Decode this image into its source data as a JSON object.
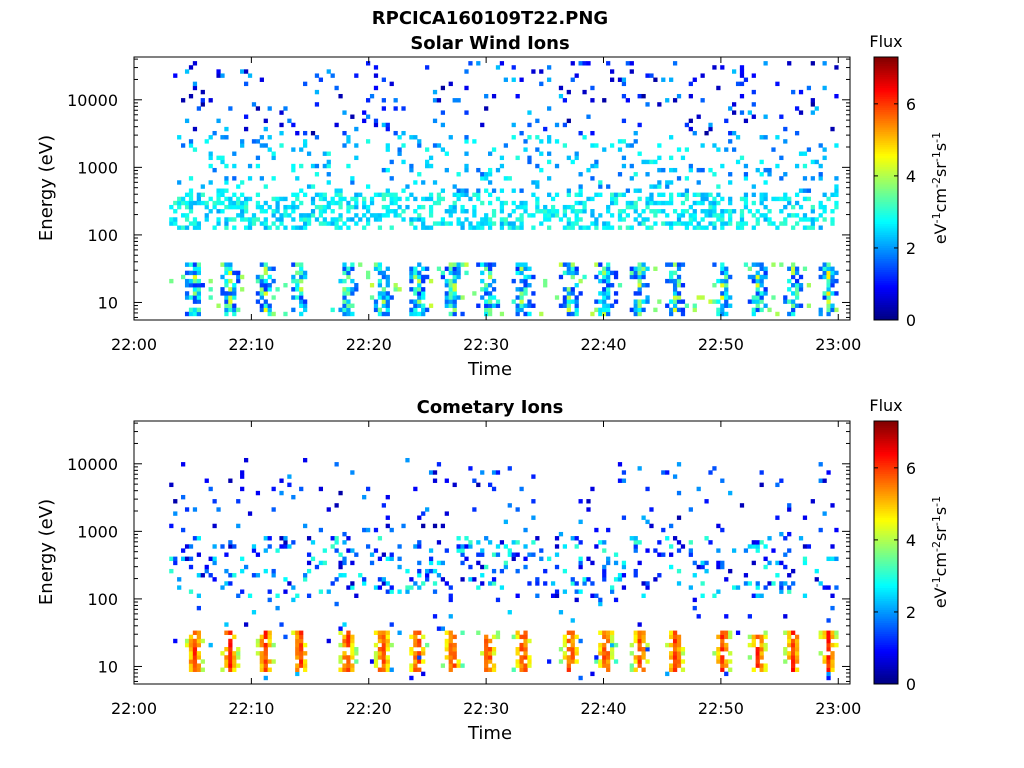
{
  "figure": {
    "title": "RPCICA160109T22.PNG"
  },
  "chart_data": [
    {
      "type": "heatmap",
      "title": "Solar Wind Ions",
      "xlabel": "Time",
      "ylabel": "Energy (eV)",
      "x_ticks": [
        "22:00",
        "22:10",
        "22:20",
        "22:30",
        "22:40",
        "22:50",
        "23:00"
      ],
      "x_range": [
        "22:00",
        "23:01"
      ],
      "y_ticks": [
        "10",
        "100",
        "1000",
        "10000"
      ],
      "y_scale": "log",
      "y_range": [
        5.5,
        43000
      ],
      "colorbar": {
        "label": "Flux",
        "unit_label": "eV-1cm-2sr-1s-1",
        "ticks": [
          "0",
          "2",
          "4",
          "6"
        ],
        "range": [
          0,
          7.3
        ],
        "colormap": "jet"
      },
      "data_summary": {
        "time_start": "22:03",
        "time_end": "23:00",
        "dense_band_energy_eV": [
          150,
          400
        ],
        "band_flux": 2.5,
        "scatter_energy_eV": [
          500,
          40000
        ],
        "low_energy_pulses_eV": [
          6,
          40
        ],
        "pulse_flux": 3.8,
        "pulse_times": [
          "22:05",
          "22:08",
          "22:11",
          "22:14",
          "22:18",
          "22:21",
          "22:24",
          "22:27",
          "22:30",
          "22:33",
          "22:37",
          "22:40",
          "22:43",
          "22:46",
          "22:50",
          "22:53",
          "22:56",
          "22:59"
        ]
      }
    },
    {
      "type": "heatmap",
      "title": "Cometary Ions",
      "xlabel": "Time",
      "ylabel": "Energy (eV)",
      "x_ticks": [
        "22:00",
        "22:10",
        "22:20",
        "22:30",
        "22:40",
        "22:50",
        "23:00"
      ],
      "x_range": [
        "22:00",
        "23:01"
      ],
      "y_ticks": [
        "10",
        "100",
        "1000",
        "10000"
      ],
      "y_scale": "log",
      "y_range": [
        5.5,
        43000
      ],
      "colorbar": {
        "label": "Flux",
        "unit_label": "eV-1cm-2sr-1s-1",
        "ticks": [
          "0",
          "2",
          "4",
          "6"
        ],
        "range": [
          0,
          7.3
        ],
        "colormap": "jet"
      },
      "data_summary": {
        "time_start": "22:03",
        "time_end": "23:00",
        "scatter_energy_eV": [
          100,
          12000
        ],
        "low_energy_pulses_eV": [
          8,
          35
        ],
        "pulse_peak_flux": 5.6,
        "pulse_times": [
          "22:05",
          "22:08",
          "22:11",
          "22:14",
          "22:18",
          "22:21",
          "22:24",
          "22:27",
          "22:30",
          "22:33",
          "22:37",
          "22:40",
          "22:43",
          "22:46",
          "22:50",
          "22:53",
          "22:56",
          "22:59"
        ]
      }
    }
  ]
}
